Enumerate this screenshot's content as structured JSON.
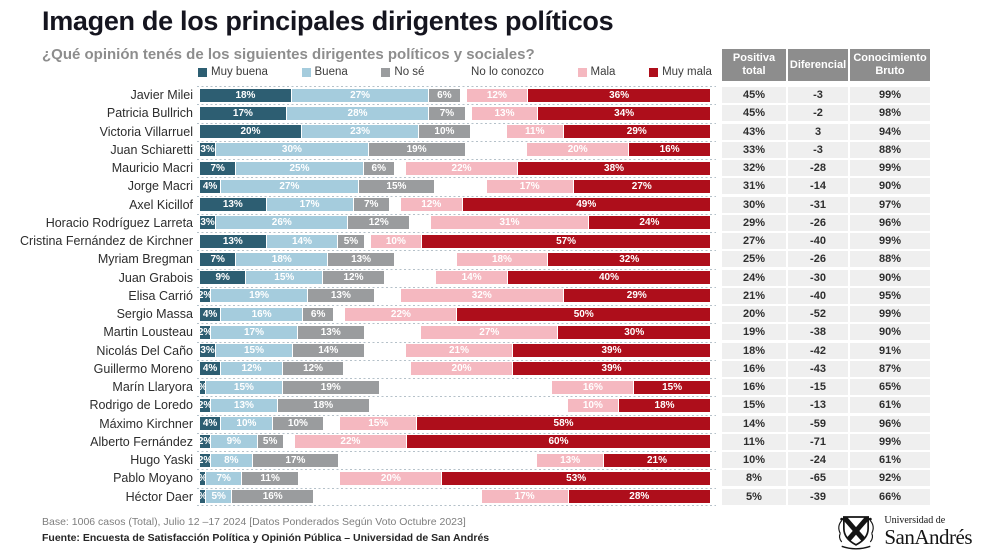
{
  "header": {
    "title": "Imagen de los principales dirigentes políticos",
    "subtitle": "¿Qué opinión tenés de los siguientes dirigentes políticos y sociales?"
  },
  "colors": {
    "segments": [
      "#2d5e72",
      "#a5ccdd",
      "#9a9c9e",
      "#ffffff",
      "#f5b8c0",
      "#ae0e1b"
    ],
    "table_header_bg": "#8d8d8d",
    "table_row_bg": "#efefef",
    "dotted_line": "#b5c1c9",
    "title_text": "#15151f",
    "subtitle_text": "#8d8d8d"
  },
  "legend": [
    {
      "label": "Muy buena",
      "color": "#2d5e72"
    },
    {
      "label": "Buena",
      "color": "#a5ccdd"
    },
    {
      "label": "No sé",
      "color": "#9a9c9e"
    },
    {
      "label": "No lo conozco",
      "color": "#ffffff"
    },
    {
      "label": "Mala",
      "color": "#f5b8c0"
    },
    {
      "label": "Muy mala",
      "color": "#ae0e1b"
    }
  ],
  "table": {
    "headers": [
      "Positiva\ntotal",
      "Diferencial",
      "Conocimiento\nBruto"
    ]
  },
  "chart_data": {
    "type": "bar",
    "stacked": true,
    "orientation": "horizontal",
    "xlim": [
      0,
      100
    ],
    "unit": "%",
    "series_keys": [
      "muy_buena",
      "buena",
      "no_se",
      "no_lo_conozco",
      "mala",
      "muy_mala"
    ],
    "series_labels": [
      "Muy buena",
      "Buena",
      "No sé",
      "No lo conozco",
      "Mala",
      "Muy mala"
    ],
    "rows": [
      {
        "name": "Javier Milei",
        "values": [
          18,
          27,
          6,
          1,
          12,
          36
        ],
        "labels": [
          "18%",
          "27%",
          "6%",
          "",
          "12%",
          "36%"
        ],
        "positiva": "45%",
        "diferencial": "-3",
        "conocimiento": "99%"
      },
      {
        "name": "Patricia Bullrich",
        "values": [
          17,
          28,
          7,
          1,
          13,
          34
        ],
        "labels": [
          "17%",
          "28%",
          "7%",
          "",
          "13%",
          "34%"
        ],
        "positiva": "45%",
        "diferencial": "-2",
        "conocimiento": "98%"
      },
      {
        "name": "Victoria Villarruel",
        "values": [
          20,
          23,
          10,
          7,
          11,
          29
        ],
        "labels": [
          "20%",
          "23%",
          "10%",
          "",
          "11%",
          "29%"
        ],
        "positiva": "43%",
        "diferencial": "3",
        "conocimiento": "94%"
      },
      {
        "name": "Juan Schiaretti",
        "values": [
          3,
          30,
          19,
          12,
          20,
          16
        ],
        "labels": [
          "3%",
          "30%",
          "19%",
          "",
          "20%",
          "16%"
        ],
        "positiva": "33%",
        "diferencial": "-3",
        "conocimiento": "88%"
      },
      {
        "name": "Mauricio Macri",
        "values": [
          7,
          25,
          6,
          2,
          22,
          38
        ],
        "labels": [
          "7%",
          "25%",
          "6%",
          "",
          "22%",
          "38%"
        ],
        "positiva": "32%",
        "diferencial": "-28",
        "conocimiento": "99%"
      },
      {
        "name": "Jorge Macri",
        "values": [
          4,
          27,
          15,
          10,
          17,
          27
        ],
        "labels": [
          "4%",
          "27%",
          "15%",
          "",
          "17%",
          "27%"
        ],
        "positiva": "31%",
        "diferencial": "-14",
        "conocimiento": "90%"
      },
      {
        "name": "Axel Kicillof",
        "values": [
          13,
          17,
          7,
          2,
          12,
          49
        ],
        "labels": [
          "13%",
          "17%",
          "7%",
          "",
          "12%",
          "49%"
        ],
        "positiva": "30%",
        "diferencial": "-31",
        "conocimiento": "97%"
      },
      {
        "name": "Horacio Rodríguez Larreta",
        "values": [
          3,
          26,
          12,
          4,
          31,
          24
        ],
        "labels": [
          "3%",
          "26%",
          "12%",
          "",
          "31%",
          "24%"
        ],
        "positiva": "29%",
        "diferencial": "-26",
        "conocimiento": "96%"
      },
      {
        "name": "Cristina Fernández de Kirchner",
        "values": [
          13,
          14,
          5,
          1,
          10,
          57
        ],
        "labels": [
          "13%",
          "14%",
          "5%",
          "",
          "10%",
          "57%"
        ],
        "positiva": "27%",
        "diferencial": "-40",
        "conocimiento": "99%"
      },
      {
        "name": "Myriam Bregman",
        "values": [
          7,
          18,
          13,
          12,
          18,
          32
        ],
        "labels": [
          "7%",
          "18%",
          "13%",
          "",
          "18%",
          "32%"
        ],
        "positiva": "25%",
        "diferencial": "-26",
        "conocimiento": "88%"
      },
      {
        "name": "Juan Grabois",
        "values": [
          9,
          15,
          12,
          10,
          14,
          40
        ],
        "labels": [
          "9%",
          "15%",
          "12%",
          "",
          "14%",
          "40%"
        ],
        "positiva": "24%",
        "diferencial": "-30",
        "conocimiento": "90%"
      },
      {
        "name": "Elisa Carrió",
        "values": [
          2,
          19,
          13,
          5,
          32,
          29
        ],
        "labels": [
          "2%",
          "19%",
          "13%",
          "",
          "32%",
          "29%"
        ],
        "positiva": "21%",
        "diferencial": "-40",
        "conocimiento": "95%"
      },
      {
        "name": "Sergio Massa",
        "values": [
          4,
          16,
          6,
          2,
          22,
          50
        ],
        "labels": [
          "4%",
          "16%",
          "6%",
          "",
          "22%",
          "50%"
        ],
        "positiva": "20%",
        "diferencial": "-52",
        "conocimiento": "99%"
      },
      {
        "name": "Martin Lousteau",
        "values": [
          2,
          17,
          13,
          11,
          27,
          30
        ],
        "labels": [
          "2%",
          "17%",
          "13%",
          "",
          "27%",
          "30%"
        ],
        "positiva": "19%",
        "diferencial": "-38",
        "conocimiento": "90%"
      },
      {
        "name": "Nicolás Del Caño",
        "values": [
          3,
          15,
          14,
          8,
          21,
          39
        ],
        "labels": [
          "3%",
          "15%",
          "14%",
          "",
          "21%",
          "39%"
        ],
        "positiva": "18%",
        "diferencial": "-42",
        "conocimiento": "91%"
      },
      {
        "name": "Guillermo Moreno",
        "values": [
          4,
          12,
          12,
          13,
          20,
          39
        ],
        "labels": [
          "4%",
          "12%",
          "12%",
          "",
          "20%",
          "39%"
        ],
        "positiva": "16%",
        "diferencial": "-43",
        "conocimiento": "87%"
      },
      {
        "name": "Marín Llaryora",
        "values": [
          1,
          15,
          19,
          34,
          16,
          15
        ],
        "labels": [
          "%",
          "15%",
          "19%",
          "",
          "16%",
          "15%"
        ],
        "positiva": "16%",
        "diferencial": "-15",
        "conocimiento": "65%"
      },
      {
        "name": "Rodrigo de Loredo",
        "values": [
          2,
          13,
          18,
          39,
          10,
          18
        ],
        "labels": [
          "2%",
          "13%",
          "18%",
          "",
          "10%",
          "18%"
        ],
        "positiva": "15%",
        "diferencial": "-13",
        "conocimiento": "61%"
      },
      {
        "name": "Máximo Kirchner",
        "values": [
          4,
          10,
          10,
          3,
          15,
          58
        ],
        "labels": [
          "4%",
          "10%",
          "10%",
          "",
          "15%",
          "58%"
        ],
        "positiva": "14%",
        "diferencial": "-59",
        "conocimiento": "96%"
      },
      {
        "name": "Alberto Fernández",
        "values": [
          2,
          9,
          5,
          2,
          22,
          60
        ],
        "labels": [
          "2%",
          "9%",
          "5%",
          "",
          "22%",
          "60%"
        ],
        "positiva": "11%",
        "diferencial": "-71",
        "conocimiento": "99%"
      },
      {
        "name": "Hugo Yaski",
        "values": [
          2,
          8,
          17,
          39,
          13,
          21
        ],
        "labels": [
          "2%",
          "8%",
          "17%",
          "",
          "13%",
          "21%"
        ],
        "positiva": "10%",
        "diferencial": "-24",
        "conocimiento": "61%"
      },
      {
        "name": "Pablo Moyano",
        "values": [
          1,
          7,
          11,
          8,
          20,
          53
        ],
        "labels": [
          "%",
          "7%",
          "11%",
          "",
          "20%",
          "53%"
        ],
        "positiva": "8%",
        "diferencial": "-65",
        "conocimiento": "92%"
      },
      {
        "name": "Héctor Daer",
        "values": [
          1,
          5,
          16,
          33,
          17,
          28
        ],
        "labels": [
          "%",
          "5%",
          "16%",
          "",
          "17%",
          "28%"
        ],
        "positiva": "5%",
        "diferencial": "-39",
        "conocimiento": "66%"
      }
    ]
  },
  "footer": {
    "base": "Base: 1006 casos (Total), Julio 12 –17 2024 [Datos Ponderados Según Voto Octubre 2023]",
    "fuente": "Fuente: Encuesta de Satisfacción Política y Opinión Pública – Universidad de San Andrés"
  },
  "logo": {
    "line1": "Universidad de",
    "line2": "SanAndrés"
  }
}
